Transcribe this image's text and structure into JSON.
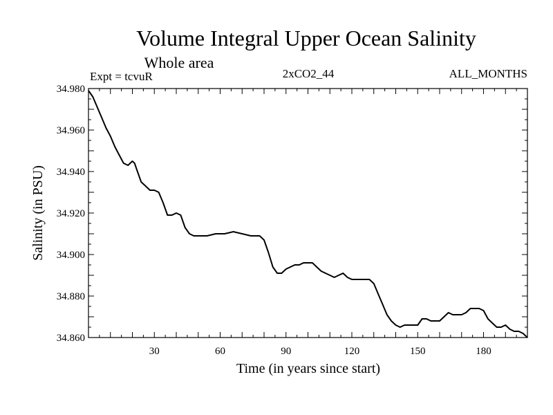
{
  "chart_data": {
    "type": "line",
    "title": "Volume Integral Upper Ocean Salinity",
    "subtitle": "Whole area",
    "expt_label": "Expt = tcvuR",
    "scenario_label": "2xCO2_44",
    "months_label": "ALL_MONTHS",
    "xlabel": "Time (in years since start)",
    "ylabel": "Salinity (in PSU)",
    "xlim": [
      0,
      200
    ],
    "ylim": [
      34.86,
      34.98
    ],
    "x_ticks": [
      30,
      60,
      90,
      120,
      150,
      180
    ],
    "y_ticks": [
      "34.860",
      "34.880",
      "34.900",
      "34.920",
      "34.940",
      "34.960",
      "34.980"
    ],
    "grid": false,
    "line_color": "#000000",
    "series": [
      {
        "x": [
          0,
          2,
          4,
          6,
          8,
          10,
          12,
          14,
          16,
          18,
          19,
          20,
          21,
          22,
          23,
          24,
          26,
          28,
          30,
          32,
          34,
          36,
          38,
          40,
          42,
          44,
          46,
          48,
          50,
          54,
          58,
          62,
          66,
          70,
          74,
          78,
          80,
          82,
          84,
          86,
          88,
          90,
          92,
          94,
          96,
          98,
          100,
          102,
          104,
          106,
          108,
          110,
          112,
          114,
          116,
          118,
          120,
          124,
          128,
          130,
          132,
          134,
          136,
          138,
          140,
          142,
          144,
          146,
          148,
          150,
          152,
          154,
          156,
          158,
          160,
          162,
          164,
          166,
          168,
          170,
          172,
          174,
          176,
          178,
          180,
          182,
          184,
          186,
          188,
          190,
          192,
          194,
          196,
          198,
          200
        ],
        "y": [
          34.979,
          34.976,
          34.971,
          34.966,
          34.961,
          34.957,
          34.952,
          34.948,
          34.944,
          34.943,
          34.944,
          34.945,
          34.944,
          34.941,
          34.938,
          34.935,
          34.933,
          34.931,
          34.931,
          34.93,
          34.925,
          34.919,
          34.919,
          34.92,
          34.919,
          34.913,
          34.91,
          34.909,
          34.909,
          34.909,
          34.91,
          34.91,
          34.911,
          34.91,
          34.909,
          34.909,
          34.907,
          34.901,
          34.894,
          34.891,
          34.891,
          34.893,
          34.894,
          34.895,
          34.895,
          34.896,
          34.896,
          34.896,
          34.894,
          34.892,
          34.891,
          34.89,
          34.889,
          34.89,
          34.891,
          34.889,
          34.888,
          34.888,
          34.888,
          34.886,
          34.881,
          34.876,
          34.871,
          34.868,
          34.866,
          34.865,
          34.866,
          34.866,
          34.866,
          34.866,
          34.869,
          34.869,
          34.868,
          34.868,
          34.868,
          34.87,
          34.872,
          34.871,
          34.871,
          34.871,
          34.872,
          34.874,
          34.874,
          34.874,
          34.873,
          34.869,
          34.867,
          34.865,
          34.865,
          34.866,
          34.864,
          34.863,
          34.863,
          34.862,
          34.86
        ]
      }
    ]
  }
}
